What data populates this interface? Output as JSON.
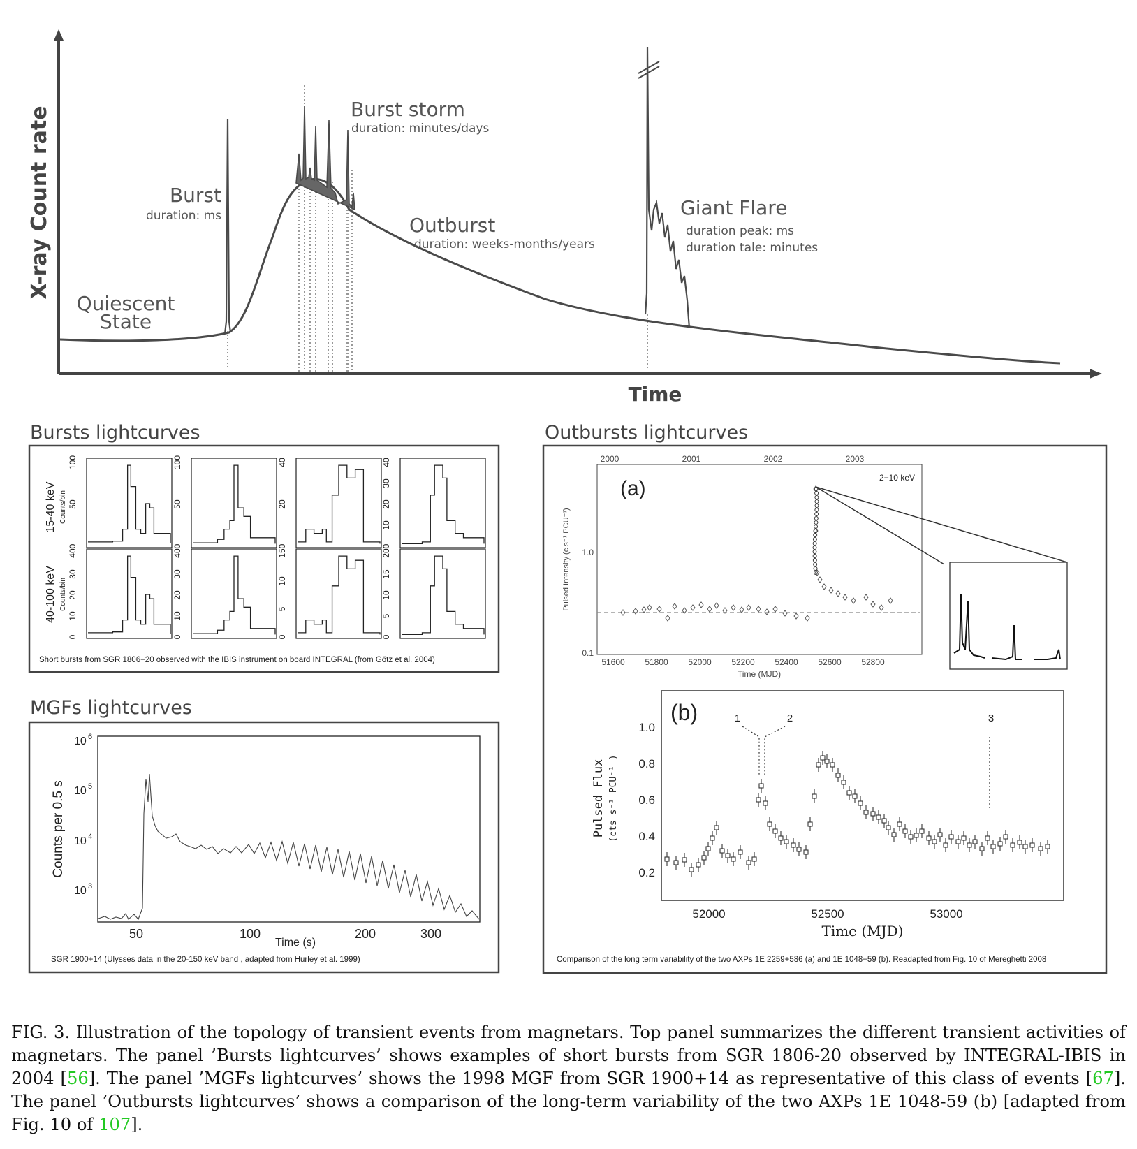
{
  "overview": {
    "ylabel": "X-ray Count rate",
    "xlabel": "Time",
    "quiescent_line1": "Quiescent",
    "quiescent_line2": "State",
    "burst_title": "Burst",
    "burst_duration": "duration: ms",
    "storm_title": "Burst storm",
    "storm_duration": "duration: minutes/days",
    "outburst_title": "Outburst",
    "outburst_duration": "duration: weeks-months/years",
    "flare_title": "Giant Flare",
    "flare_peak": "duration peak: ms",
    "flare_tale": "duration tale: minutes"
  },
  "bursts_panel": {
    "title": "Bursts lightcurves",
    "row1_label": "15-40 keV",
    "row2_label": "40-100 keV",
    "unit_label": "Counts/bin",
    "caption": "Short bursts from SGR 1806−20 observed with the IBIS instrument on board INTEGRAL (from Götz et al. 2004)",
    "top_ticks": [
      [
        "0",
        "50",
        "100"
      ],
      [
        "0",
        "50",
        "100"
      ],
      [
        "0",
        "20",
        "40"
      ],
      [
        "0",
        "10",
        "20",
        "30",
        "40"
      ]
    ],
    "bottom_ticks": [
      [
        "0",
        "10",
        "20",
        "30",
        "40"
      ],
      [
        "0",
        "10",
        "20",
        "30",
        "40"
      ],
      [
        "0",
        "5",
        "10",
        "15"
      ],
      [
        "0",
        "5",
        "10",
        "15",
        "20"
      ]
    ]
  },
  "mgf_panel": {
    "title": "MGFs lightcurves",
    "ylabel": "Counts per 0.5 s",
    "xlabel": "Time (s)",
    "caption": "SGR 1900+14 (Ulysses data in the 20-150 keV band , adapted from Hurley et al. 1999)",
    "x_ticks": [
      "50",
      "100",
      "200",
      "300"
    ],
    "y_ticks": [
      [
        "10",
        "6"
      ],
      [
        "10",
        "5"
      ],
      [
        "10",
        "4"
      ],
      [
        "10",
        "3"
      ]
    ]
  },
  "outburst_panel": {
    "title": "Outbursts lightcurves",
    "caption": "Comparison of the long term variability of the two AXPs 1E 2259+586 (a) and 1E 1048−59 (b). Readapted from Fig. 10 of Mereghetti 2008",
    "a_label": "(a)",
    "a_band": "2−10 keV",
    "a_ylabel": "Pulsed Intensity (c s⁻¹ PCU⁻¹)",
    "a_xlabel": "Time (MJD)",
    "a_year_ticks": [
      "2000",
      "2001",
      "2002",
      "2003"
    ],
    "a_x_ticks": [
      "51600",
      "51800",
      "52000",
      "52200",
      "52400",
      "52600",
      "52800"
    ],
    "a_y_ticks": [
      "1.0",
      "0.1"
    ],
    "b_label": "(b)",
    "b_ylabel1": "Pulsed Flux",
    "b_ylabel2": "(cts s⁻¹ PCU⁻¹ )",
    "b_xlabel": "Time (MJD)",
    "b_x_ticks": [
      "52000",
      "52500",
      "53000"
    ],
    "b_y_ticks": [
      "1.0",
      "0.8",
      "0.6",
      "0.4",
      "0.2"
    ],
    "b_markers": [
      "1",
      "2",
      "3"
    ]
  },
  "figure_caption": {
    "part1": "FIG. 3. Illustration of the topology of transient events from magnetars. Top panel summarizes the different transient activities of magnetars. The panel ’Bursts lightcurves’ shows examples of short bursts from SGR 1806-20 observed by INTEGRAL-IBIS in 2004 [",
    "ref1": "56",
    "part2": "]. The panel ’MGFs lightcurves’ shows the 1998 MGF from SGR 1900+14 as representative of this class of events [",
    "ref2": "67",
    "part3": "]. The panel ’Outbursts lightcurves’ shows a comparison of the long-term variability of the two AXPs 1E 1048-59 (b) [adapted from Fig. 10 of ",
    "ref3": "107",
    "part4": "]."
  }
}
